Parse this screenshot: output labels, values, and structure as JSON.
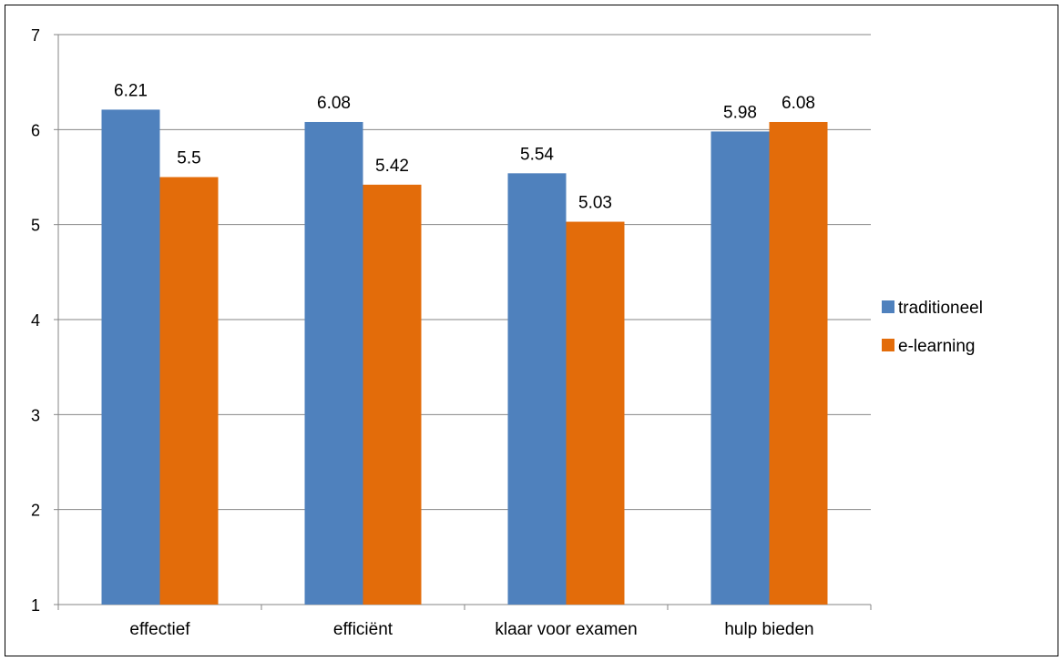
{
  "chart_data": {
    "type": "bar",
    "title": "",
    "xlabel": "",
    "ylabel": "",
    "categories": [
      "effectief",
      "efficiënt",
      "klaar voor examen",
      "hulp bieden"
    ],
    "series": [
      {
        "name": "traditioneel",
        "color": "#4f81bd",
        "values": [
          6.21,
          6.08,
          5.54,
          5.98
        ],
        "labels": [
          "6.21",
          "6.08",
          "5.54",
          "5.98"
        ]
      },
      {
        "name": "e-learning",
        "color": "#e36c0a",
        "values": [
          5.5,
          5.42,
          5.03,
          6.08
        ],
        "labels": [
          "5.5",
          "5.42",
          "5.03",
          "6.08"
        ]
      }
    ],
    "ylim": [
      1,
      7
    ],
    "yticks": [
      "1",
      "2",
      "3",
      "4",
      "5",
      "6",
      "7"
    ],
    "grid": true,
    "legend_position": "right"
  }
}
